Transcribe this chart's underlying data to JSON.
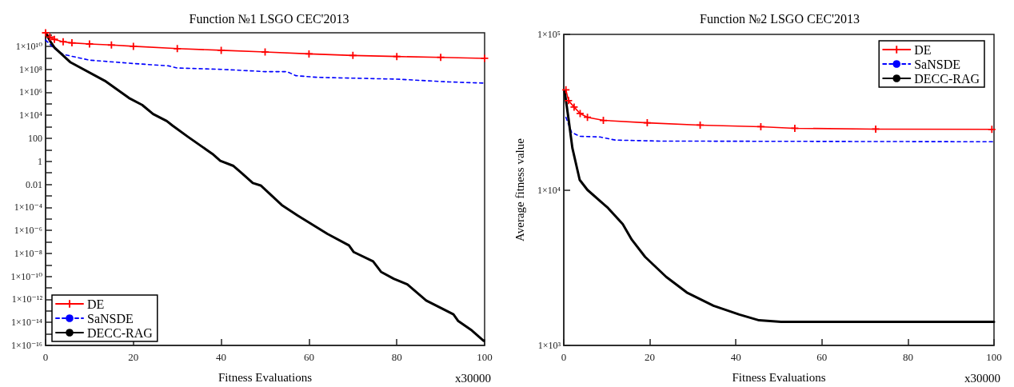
{
  "chart_data": [
    {
      "type": "line",
      "title": "Function №1 LSGO CEC'2013",
      "xlabel": "Fitness Evaluations",
      "annotations": [
        "x30000"
      ],
      "legend": "bottom left",
      "grid": false,
      "log": "y",
      "xlim": [
        0,
        100
      ],
      "xticks": [
        0,
        20,
        40,
        60,
        80,
        100
      ],
      "ylim": [
        1e-16,
        150000000000.0
      ],
      "yticks": [
        {
          "value": 1e-16,
          "label": "1×10⁻¹⁶"
        },
        {
          "value": 1e-15,
          "label": null
        },
        {
          "value": 1e-14,
          "label": "1×10⁻¹⁴"
        },
        {
          "value": 1e-13,
          "label": null
        },
        {
          "value": 1e-12,
          "label": "1×10⁻¹²"
        },
        {
          "value": 1e-11,
          "label": null
        },
        {
          "value": 1e-10,
          "label": "1×10⁻¹⁰"
        },
        {
          "value": 1e-09,
          "label": null
        },
        {
          "value": 1e-08,
          "label": "1×10⁻⁸"
        },
        {
          "value": 1e-07,
          "label": null
        },
        {
          "value": 1e-06,
          "label": "1×10⁻⁶"
        },
        {
          "value": 1e-05,
          "label": null
        },
        {
          "value": 0.0001,
          "label": "1×10⁻⁴"
        },
        {
          "value": 0.001,
          "label": null
        },
        0.01,
        {
          "value": 0.1,
          "label": null
        },
        1,
        {
          "value": 10,
          "label": null
        },
        100,
        {
          "value": 1000,
          "label": null
        },
        {
          "value": 10000.0,
          "label": "1×10⁴"
        },
        {
          "value": 100000.0,
          "label": null
        },
        {
          "value": 1000000.0,
          "label": "1×10⁶"
        },
        {
          "value": 10000000.0,
          "label": null
        },
        {
          "value": 100000000.0,
          "label": "1×10⁸"
        },
        {
          "value": 1000000000.0,
          "label": null
        },
        {
          "value": 10000000000.0,
          "label": "1×10¹⁰"
        },
        {
          "value": 100000000000.0,
          "label": null
        }
      ],
      "series": [
        {
          "name": "DE",
          "color": "#ff0000",
          "marker": "cross",
          "line_style": "solid",
          "x": [
            0,
            1,
            2,
            4,
            6,
            10,
            15,
            20,
            30,
            40,
            50,
            60,
            70,
            80,
            90,
            100
          ],
          "values": [
            150000000000.0,
            63000000000.0,
            40000000000.0,
            25000000000.0,
            20000000000.0,
            16000000000.0,
            13000000000.0,
            10000000000.0,
            6300000000.0,
            4500000000.0,
            3200000000.0,
            2200000000.0,
            1600000000.0,
            1300000000.0,
            1100000000.0,
            900000000.0
          ]
        },
        {
          "name": "SaNSDE",
          "color": "#0000ff",
          "marker": "none",
          "line_style": "dashed",
          "x": [
            0,
            2,
            4,
            10,
            20,
            28,
            30,
            40,
            50,
            55,
            57,
            62,
            80,
            92,
            100
          ],
          "values": [
            35000000000.0,
            6300000000.0,
            2000000000.0,
            630000000.0,
            320000000.0,
            200000000.0,
            130000000.0,
            100000000.0,
            63000000.0,
            63000000.0,
            28000000.0,
            20000000.0,
            14000000.0,
            8000000.0,
            6300000.0
          ]
        },
        {
          "name": "DECC-RAG",
          "color": "#000000",
          "marker": "none",
          "line_style": "solid",
          "x": [
            0,
            1,
            2,
            5.7,
            13.5,
            19,
            22,
            24.5,
            27.6,
            28.9,
            32.5,
            38,
            39.8,
            42.8,
            44.6,
            47.2,
            49,
            53.8,
            57.4,
            64.2,
            69.1,
            70.2,
            74.6,
            76.4,
            79.3,
            82.4,
            86.7,
            90.3,
            92.9,
            94,
            97.1,
            99.8
          ],
          "values": [
            150000000000.0,
            30000000000.0,
            8000000000.0,
            400000000.0,
            10000000.0,
            320000.0,
            80000.0,
            13000.0,
            3200.0,
            1300.0,
            130,
            4.5,
            1.1,
            0.4,
            0.1,
            0.013,
            0.008,
            0.00016,
            2e-05,
            5e-07,
            5e-08,
            1.3e-08,
            2e-09,
            2.5e-10,
            6.3e-11,
            2e-11,
            8e-13,
            1.6e-13,
            5e-14,
            1.3e-14,
            2e-15,
            2.5e-16
          ]
        }
      ]
    },
    {
      "type": "line",
      "title": "Function №2 LSGO CEC'2013",
      "xlabel": "Fitness Evaluations",
      "ylabel": "Average fitness value",
      "annotations": [
        "x30000"
      ],
      "legend": "top right",
      "grid": false,
      "log": "y",
      "xlim": [
        0,
        100
      ],
      "xticks": [
        0,
        20,
        40,
        60,
        80,
        100
      ],
      "ylim": [
        1000,
        100000
      ],
      "yticks": [
        {
          "value": 1000,
          "label": "1×10³"
        },
        {
          "value": 10000,
          "label": "1×10⁴"
        },
        {
          "value": 100000,
          "label": "1×10⁵"
        }
      ],
      "series": [
        {
          "name": "DE",
          "color": "#ff0000",
          "marker": "cross",
          "line_style": "solid",
          "x": [
            0.5,
            1.1,
            2.4,
            3.8,
            5.5,
            9.2,
            19.4,
            31.7,
            45.8,
            53.7,
            72.5,
            99.5
          ],
          "values": [
            44000,
            37500,
            34100,
            31000,
            29300,
            28000,
            27000,
            26100,
            25500,
            24900,
            24600,
            24500
          ]
        },
        {
          "name": "SaNSDE",
          "color": "#0000ff",
          "marker": "none",
          "line_style": "dashed",
          "x": [
            0.5,
            1.8,
            3.7,
            8.4,
            12,
            22.5,
            100
          ],
          "values": [
            29300,
            23500,
            22100,
            21900,
            20900,
            20600,
            20400
          ]
        },
        {
          "name": "DECC-RAG",
          "color": "#000000",
          "marker": "none",
          "line_style": "solid",
          "x": [
            0.2,
            1.1,
            2,
            3.7,
            5.5,
            10.3,
            13.7,
            15.8,
            18.9,
            23.8,
            28.6,
            34.8,
            40.8,
            45.4,
            50.5,
            100
          ],
          "values": [
            43200,
            28700,
            18600,
            11600,
            10000,
            7640,
            6030,
            4790,
            3710,
            2760,
            2190,
            1800,
            1580,
            1450,
            1420,
            1420
          ]
        }
      ]
    }
  ]
}
